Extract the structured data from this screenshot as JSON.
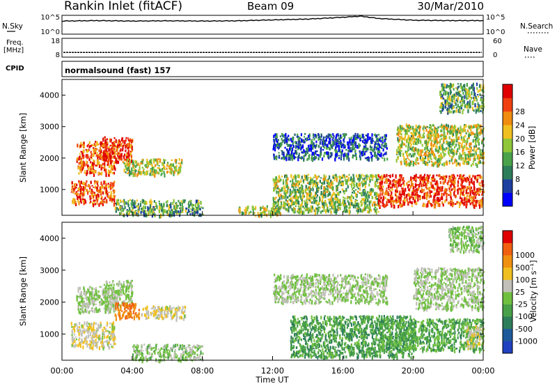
{
  "header": {
    "station": "Rankin Inlet (fitACF)",
    "beam": "Beam 09",
    "date": "30/Mar/2010"
  },
  "nsky_panel": {
    "left_label": "N.Sky",
    "left_ticks": [
      "10^5",
      "10^0"
    ],
    "right_label": "N.Search",
    "right_ticks": [
      "10^5",
      "10^0"
    ]
  },
  "freq_panel": {
    "left_label_line1": "Freq.",
    "left_label_line2": "[MHz]",
    "left_ticks": [
      "18",
      "8"
    ],
    "right_label": "Nave",
    "right_ticks": [
      "60",
      "0"
    ]
  },
  "cpid_panel": {
    "left_label": "CPID",
    "text": "normalsound (fast) 157"
  },
  "power_panel": {
    "ylabel": "Slant Range [km]",
    "yticks": [
      "1000",
      "2000",
      "3000",
      "4000"
    ],
    "colorbar_label": "Power [dB]",
    "colorbar_ticks": [
      "4",
      "8",
      "12",
      "16",
      "20",
      "24",
      "28"
    ],
    "colors": [
      "#0000ff",
      "#1e3fa0",
      "#2e7d5a",
      "#4aa34a",
      "#8fc63a",
      "#f0c020",
      "#f08c10",
      "#f04010",
      "#e00000"
    ]
  },
  "velocity_panel": {
    "ylabel": "Slant Range [km]",
    "yticks": [
      "1000",
      "2000",
      "3000",
      "4000"
    ],
    "colorbar_label": "Velocity [m s⁻¹]",
    "colorbar_ticks": [
      "1000",
      "500",
      "100",
      "25",
      "-25",
      "-100",
      "-500",
      "-1000"
    ],
    "colors": [
      "#2040c0",
      "#1e5a9a",
      "#2e7d5a",
      "#48a048",
      "#70c040",
      "#c0c0b8",
      "#f0c020",
      "#f09010",
      "#f06010",
      "#e00000"
    ]
  },
  "x_axis": {
    "ticks": [
      "00:00",
      "04:00",
      "08:00",
      "12:00",
      "16:00",
      "20:00",
      "00:00"
    ],
    "label": "Time UT"
  },
  "chart_data": [
    {
      "type": "line",
      "title": "N.Sky / N.Search",
      "xlabel": "Time UT",
      "x": [
        "00:00",
        "02:00",
        "04:00",
        "06:00",
        "08:00",
        "10:00",
        "12:00",
        "14:00",
        "16:00",
        "17:00",
        "18:00",
        "20:00",
        "22:00",
        "24:00"
      ],
      "series": [
        {
          "name": "N.Sky",
          "values": [
            3000,
            4000,
            3000,
            3500,
            3000,
            3500,
            6000,
            10000,
            30000,
            60000,
            15000,
            5000,
            4000,
            4000
          ]
        }
      ],
      "ylim": [
        "10^0",
        "10^5"
      ],
      "scale": "log"
    },
    {
      "type": "line",
      "title": "Freq. [MHz] / Nave",
      "x": [
        "00:00",
        "24:00"
      ],
      "series": [
        {
          "name": "Freq.",
          "values": [
            10.5,
            10.5
          ]
        }
      ],
      "ylim": [
        8,
        18
      ]
    },
    {
      "type": "heatmap",
      "title": "Power [dB]",
      "xlabel": "Time UT",
      "ylabel": "Slant Range [km]",
      "xlim": [
        "00:00",
        "24:00"
      ],
      "ylim": [
        180,
        4500
      ],
      "clim": [
        0,
        30
      ],
      "regions": [
        {
          "t0": 0.5,
          "t1": 3.0,
          "r0": 550,
          "r1": 1300,
          "value": 24
        },
        {
          "t0": 0.8,
          "t1": 3.0,
          "r0": 1500,
          "r1": 2550,
          "value": 24
        },
        {
          "t0": 2.3,
          "t1": 4.0,
          "r0": 1900,
          "r1": 2700,
          "value": 26
        },
        {
          "t0": 3.5,
          "t1": 6.8,
          "r0": 1500,
          "r1": 2000,
          "value": 16
        },
        {
          "t0": 3.0,
          "t1": 8.0,
          "r0": 200,
          "r1": 700,
          "value": 12
        },
        {
          "t0": 10.0,
          "t1": 12.5,
          "r0": 200,
          "r1": 500,
          "value": 16
        },
        {
          "t0": 12.0,
          "t1": 18.5,
          "r0": 2000,
          "r1": 2800,
          "value": 6
        },
        {
          "t0": 12.0,
          "t1": 18.0,
          "r0": 300,
          "r1": 1500,
          "value": 14
        },
        {
          "t0": 18.0,
          "t1": 24.0,
          "r0": 500,
          "r1": 1500,
          "value": 26
        },
        {
          "t0": 19.0,
          "t1": 24.0,
          "r0": 1800,
          "r1": 3100,
          "value": 16
        },
        {
          "t0": 21.5,
          "t1": 24.0,
          "r0": 3500,
          "r1": 4400,
          "value": 12
        }
      ]
    },
    {
      "type": "heatmap",
      "title": "Velocity [m s⁻¹]",
      "xlabel": "Time UT",
      "ylabel": "Slant Range [km]",
      "xlim": [
        "00:00",
        "24:00"
      ],
      "ylim": [
        180,
        4500
      ],
      "clim": [
        -1000,
        1000
      ],
      "regions": [
        {
          "t0": 0.5,
          "t1": 3.0,
          "r0": 600,
          "r1": 1400,
          "value": 150
        },
        {
          "t0": 0.8,
          "t1": 3.0,
          "r0": 1700,
          "r1": 2500,
          "value": 0
        },
        {
          "t0": 2.3,
          "t1": 4.0,
          "r0": 1900,
          "r1": 2700,
          "value": 0
        },
        {
          "t0": 3.0,
          "t1": 4.5,
          "r0": 1500,
          "r1": 2000,
          "value": 600
        },
        {
          "t0": 4.5,
          "t1": 7.0,
          "r0": 1500,
          "r1": 1900,
          "value": 150
        },
        {
          "t0": 4.0,
          "t1": 8.0,
          "r0": 200,
          "r1": 700,
          "value": -60
        },
        {
          "t0": 12.0,
          "t1": 18.5,
          "r0": 2000,
          "r1": 2900,
          "value": 0
        },
        {
          "t0": 13.0,
          "t1": 20.0,
          "r0": 300,
          "r1": 1600,
          "value": -300
        },
        {
          "t0": 18.0,
          "t1": 24.0,
          "r0": 500,
          "r1": 1500,
          "value": -250
        },
        {
          "t0": 20.0,
          "t1": 24.0,
          "r0": 1800,
          "r1": 3100,
          "value": 0
        },
        {
          "t0": 23.0,
          "t1": 24.0,
          "r0": 600,
          "r1": 1300,
          "value": 150
        },
        {
          "t0": 22.0,
          "t1": 24.0,
          "r0": 3600,
          "r1": 4400,
          "value": -60
        }
      ]
    }
  ]
}
